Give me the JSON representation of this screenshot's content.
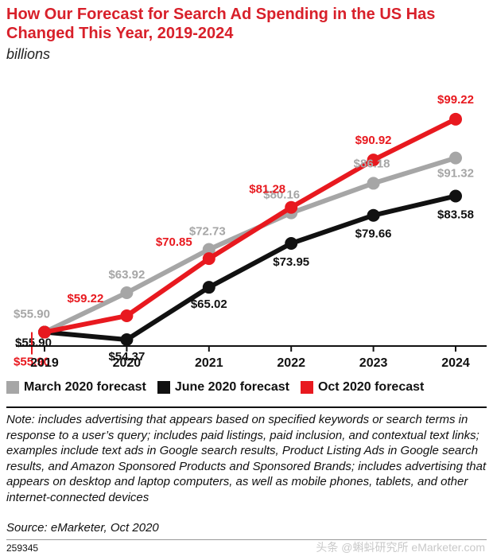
{
  "header": {
    "title": "How Our Forecast for Search Ad Spending in the US Has Changed This Year, 2019-2024",
    "subtitle": "billions"
  },
  "chart_data": {
    "type": "line",
    "categories": [
      "2019",
      "2020",
      "2021",
      "2022",
      "2023",
      "2024"
    ],
    "ylim": [
      50,
      100
    ],
    "grid": false,
    "legend_position": "bottom",
    "series": [
      {
        "name": "March 2020 forecast",
        "color": "#a6a6a6",
        "values": [
          55.9,
          63.92,
          72.73,
          80.16,
          86.18,
          91.32
        ],
        "labels": [
          "$55.90",
          "$63.92",
          "$72.73",
          "$80.16",
          "$86.18",
          "$91.32"
        ]
      },
      {
        "name": "June 2020 forecast",
        "color": "#111111",
        "values": [
          55.9,
          54.37,
          65.02,
          73.95,
          79.66,
          83.58
        ],
        "labels": [
          "$55.90",
          "$54.37",
          "$65.02",
          "$73.95",
          "$79.66",
          "$83.58"
        ]
      },
      {
        "name": "Oct 2020 forecast",
        "color": "#e8191f",
        "values": [
          55.9,
          59.22,
          70.85,
          81.28,
          90.92,
          99.22
        ],
        "labels": [
          "$55.90",
          "$59.22",
          "$70.85",
          "$81.28",
          "$90.92",
          "$99.22"
        ]
      }
    ]
  },
  "notes": {
    "note": "Note: includes advertising that appears based on specified keywords or search terms in response to a user’s query; includes paid listings, paid inclusion, and contextual text links; examples include text ads in Google search results, Product Listing Ads in Google search results, and Amazon Sponsored Products and Sponsored Brands; includes advertising that appears on desktop and laptop computers, as well as mobile phones, tablets, and other internet-connected devices",
    "source": "Source: eMarketer, Oct 2020",
    "chart_id": "259345",
    "watermark": "头条 @蝌蚪研究所 eMarketer.com"
  }
}
